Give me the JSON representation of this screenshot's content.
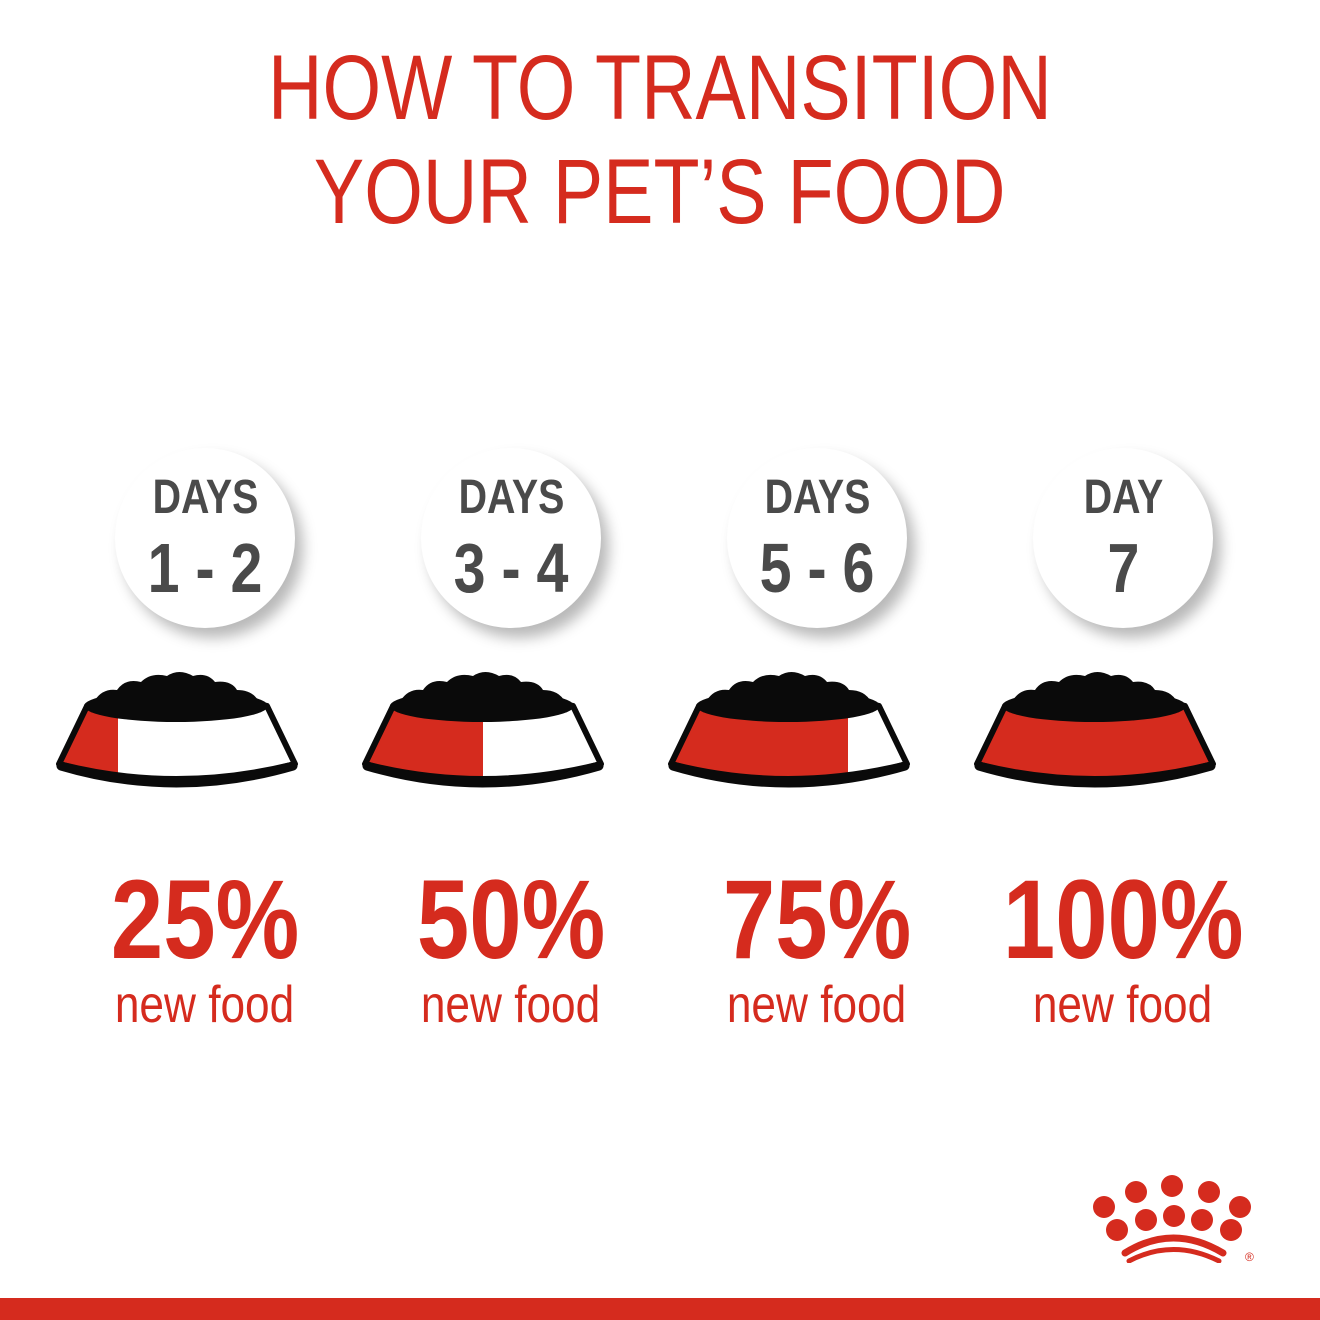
{
  "title": {
    "line1": "HOW TO TRANSITION",
    "line2": "YOUR PET’S FOOD"
  },
  "steps": [
    {
      "days_label": "DAYS",
      "days_range": "1 - 2",
      "percent_label": "25%",
      "new_food_fraction": 0.25,
      "caption": "new food"
    },
    {
      "days_label": "DAYS",
      "days_range": "3 - 4",
      "percent_label": "50%",
      "new_food_fraction": 0.5,
      "caption": "new food"
    },
    {
      "days_label": "DAYS",
      "days_range": "5 - 6",
      "percent_label": "75%",
      "new_food_fraction": 0.75,
      "caption": "new food"
    },
    {
      "days_label": "DAY",
      "days_range": "7",
      "percent_label": "100%",
      "new_food_fraction": 1.0,
      "caption": "new food"
    }
  ],
  "logo": {
    "name": "crown-logo",
    "registered_mark": "®"
  },
  "colors": {
    "brand_red": "#d52b1e",
    "text_gray": "#4a4a4a",
    "kibble_black": "#0a0a0a"
  }
}
